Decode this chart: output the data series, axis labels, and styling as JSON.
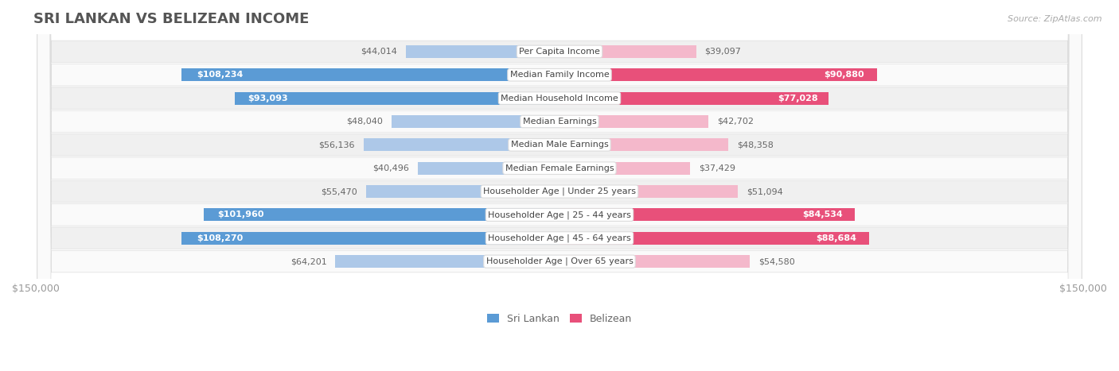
{
  "title": "Sri Lankan vs Belizean Income",
  "source": "Source: ZipAtlas.com",
  "categories": [
    "Per Capita Income",
    "Median Family Income",
    "Median Household Income",
    "Median Earnings",
    "Median Male Earnings",
    "Median Female Earnings",
    "Householder Age | Under 25 years",
    "Householder Age | 25 - 44 years",
    "Householder Age | 45 - 64 years",
    "Householder Age | Over 65 years"
  ],
  "sri_lankan": [
    44014,
    108234,
    93093,
    48040,
    56136,
    40496,
    55470,
    101960,
    108270,
    64201
  ],
  "belizean": [
    39097,
    90880,
    77028,
    42702,
    48358,
    37429,
    51094,
    84534,
    88684,
    54580
  ],
  "max_val": 150000,
  "sri_lankan_color_light": "#adc8e8",
  "sri_lankan_color_dark": "#5b9bd5",
  "belizean_color_light": "#f4b8cb",
  "belizean_color_dark": "#e8507a",
  "inside_label_threshold": 75000,
  "bar_height": 0.55,
  "row_bg_even": "#f0f0f0",
  "row_bg_odd": "#fafafa",
  "label_inside_color": "#ffffff",
  "label_outside_color": "#666666",
  "category_text_color": "#444444",
  "axis_label_color": "#999999",
  "title_color": "#555555",
  "source_color": "#aaaaaa",
  "title_fontsize": 13,
  "label_fontsize": 8,
  "cat_fontsize": 8
}
